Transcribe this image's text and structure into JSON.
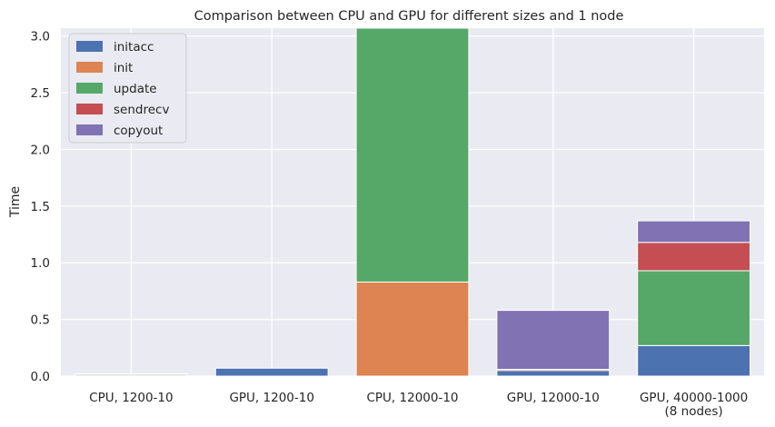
{
  "chart_data": {
    "type": "bar",
    "stacked": true,
    "title": "Comparison between CPU and GPU for different sizes and 1 node",
    "xlabel": "",
    "ylabel": "Time",
    "ylim": [
      0,
      3.07
    ],
    "yticks": [
      "0.0",
      "0.5",
      "1.0",
      "1.5",
      "2.0",
      "2.5",
      "3.0"
    ],
    "ytick_values": [
      0,
      0.5,
      1.0,
      1.5,
      2.0,
      2.5,
      3.0
    ],
    "grid": true,
    "legend_position": "top-left",
    "background": "#eaeaf2",
    "categories": [
      [
        "CPU, 1200-10"
      ],
      [
        "GPU, 1200-10"
      ],
      [
        "CPU, 12000-10"
      ],
      [
        "GPU, 12000-10"
      ],
      [
        "GPU, 40000-1000",
        "(8 nodes)"
      ]
    ],
    "series": [
      {
        "name": "initacc",
        "color": "#4c72b0",
        "values": [
          0.0,
          0.07,
          0.0,
          0.05,
          0.27
        ]
      },
      {
        "name": "init",
        "color": "#dd8452",
        "values": [
          0.01,
          0.0,
          0.83,
          0.0,
          0.0
        ]
      },
      {
        "name": "update",
        "color": "#55a868",
        "values": [
          0.01,
          0.0,
          2.24,
          0.0,
          0.66
        ]
      },
      {
        "name": "sendrecv",
        "color": "#c44e52",
        "values": [
          0.0,
          0.0,
          0.0,
          0.01,
          0.25
        ]
      },
      {
        "name": "copyout",
        "color": "#8172b3",
        "values": [
          0.0,
          0.0,
          0.0,
          0.52,
          0.19
        ]
      }
    ]
  }
}
